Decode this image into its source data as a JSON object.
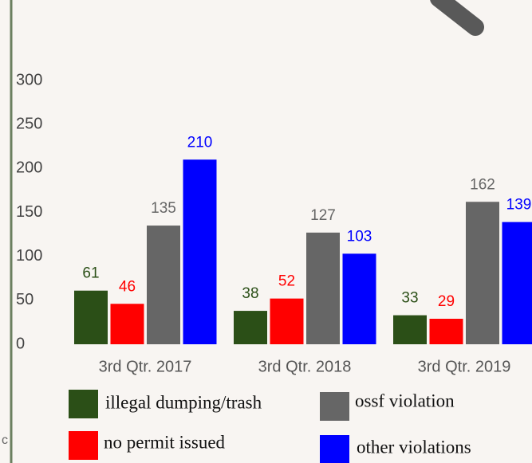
{
  "chart_data": {
    "type": "bar",
    "categories": [
      "3rd Qtr. 2017",
      "3rd Qtr. 2018",
      "3rd Qtr. 2019"
    ],
    "series": [
      {
        "name": "illegal dumping/trash",
        "color": "#2b4f17",
        "values": [
          61,
          38,
          33
        ]
      },
      {
        "name": "no permit issued",
        "color": "#ff0000",
        "values": [
          46,
          52,
          29
        ]
      },
      {
        "name": "ossf violation",
        "color": "#666666",
        "values": [
          135,
          127,
          162
        ]
      },
      {
        "name": "other violations",
        "color": "#0000ff",
        "values": [
          210,
          103,
          139
        ]
      }
    ],
    "ylim": [
      0,
      300
    ],
    "yticks": [
      0,
      50,
      100,
      150,
      200,
      250,
      300
    ],
    "grid": false
  },
  "fragment": "c"
}
